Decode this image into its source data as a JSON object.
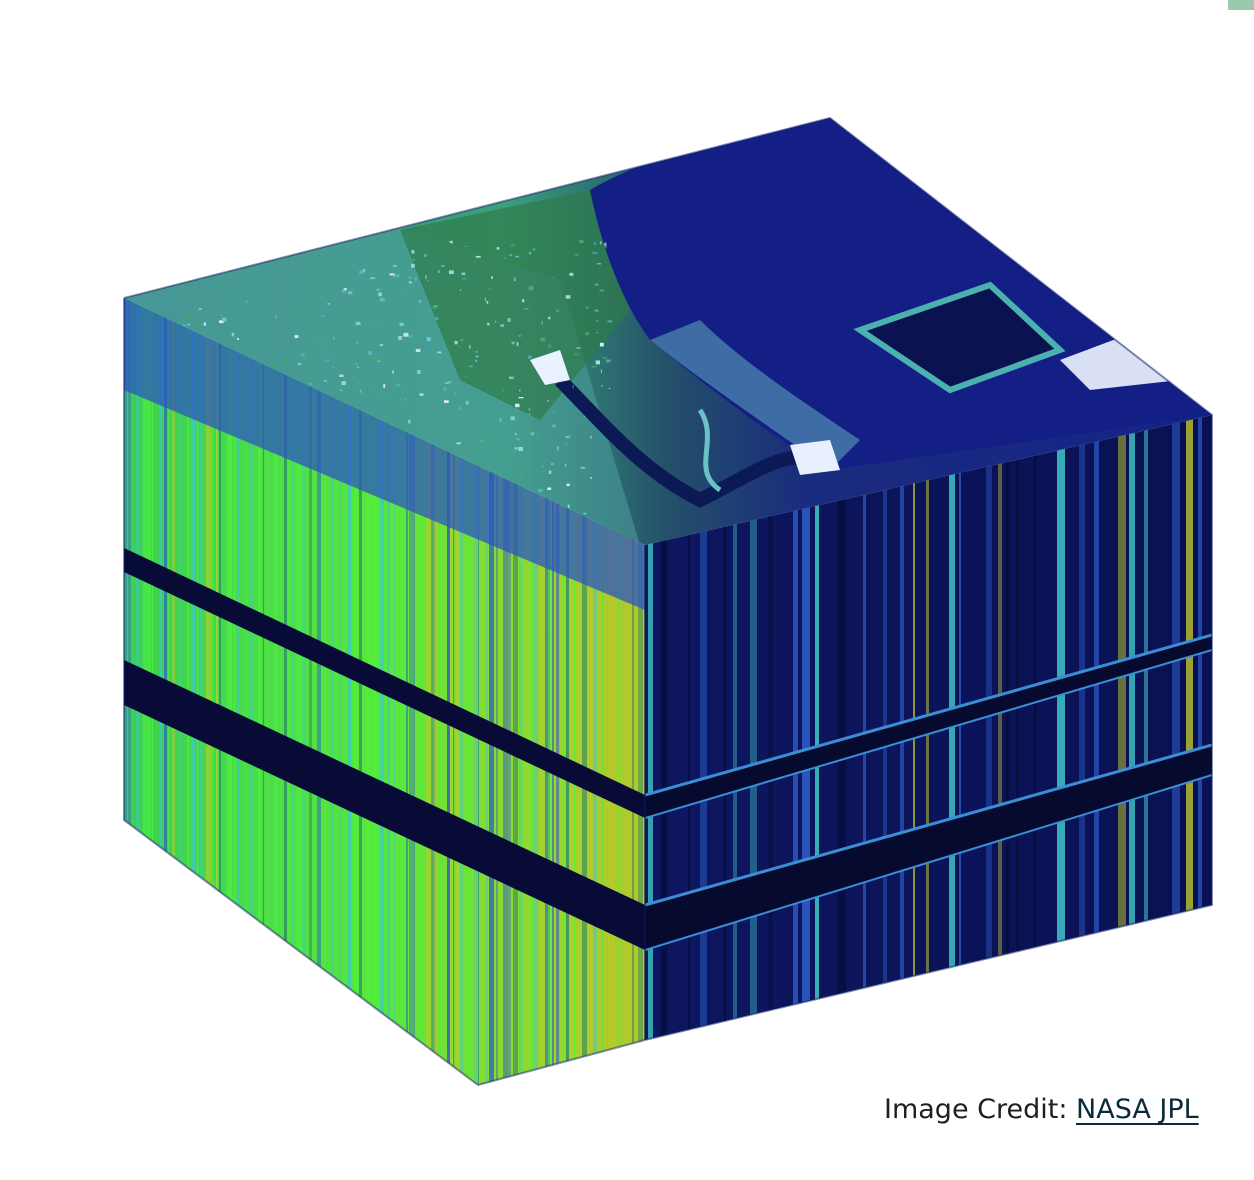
{
  "figure": {
    "icon": "hyperspectral-cube-image",
    "colors": {
      "water": "#101a6e",
      "deep_navy": "#060b33",
      "land_green": "#2f8b64",
      "spectral_green": "#4cf23e",
      "spectral_yellow": "#c4cc2a",
      "spectral_blue": "#2e5dc9",
      "spectral_cyan": "#3fc8c8"
    }
  },
  "credit": {
    "prefix": "Image Credit: ",
    "link_label": "NASA JPL"
  }
}
